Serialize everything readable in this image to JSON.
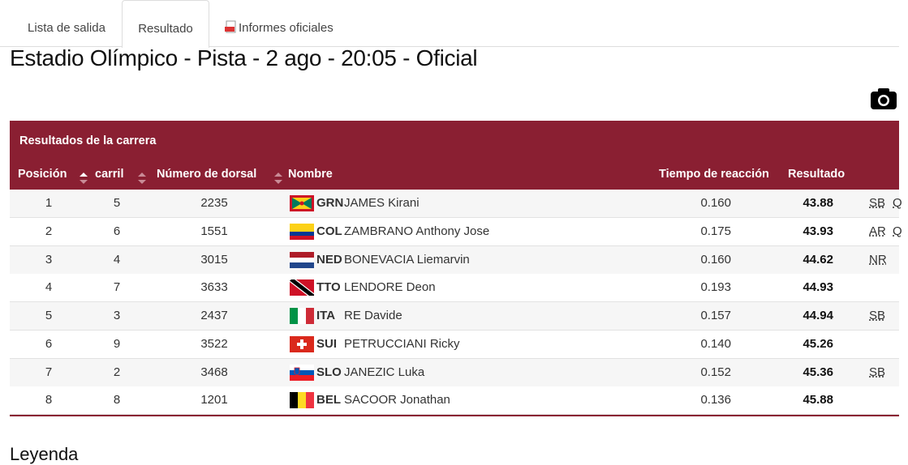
{
  "tabs": [
    "Lista de salida",
    "Resultado",
    "Informes oficiales"
  ],
  "heading": "Estadio Olímpico - Pista - 2 ago - 20:05 - Oficial",
  "table": {
    "title": "Resultados de la carrera",
    "columns": [
      "Posición",
      "carril",
      "Número de dorsal",
      "Nombre",
      "Tiempo de reacción",
      "Resultado"
    ],
    "rows": [
      {
        "position": "1",
        "lane": "5",
        "bib": "2235",
        "country": "GRN",
        "name": "JAMES Kirani",
        "reaction": "0.160",
        "result": "43.88",
        "records": [
          "SB",
          "Q"
        ]
      },
      {
        "position": "2",
        "lane": "6",
        "bib": "1551",
        "country": "COL",
        "name": "ZAMBRANO Anthony Jose",
        "reaction": "0.175",
        "result": "43.93",
        "records": [
          "AR",
          "Q"
        ]
      },
      {
        "position": "3",
        "lane": "4",
        "bib": "3015",
        "country": "NED",
        "name": "BONEVACIA Liemarvin",
        "reaction": "0.160",
        "result": "44.62",
        "records": [
          "NR"
        ]
      },
      {
        "position": "4",
        "lane": "7",
        "bib": "3633",
        "country": "TTO",
        "name": "LENDORE Deon",
        "reaction": "0.193",
        "result": "44.93",
        "records": []
      },
      {
        "position": "5",
        "lane": "3",
        "bib": "2437",
        "country": "ITA",
        "name": "RE Davide",
        "reaction": "0.157",
        "result": "44.94",
        "records": [
          "SB"
        ]
      },
      {
        "position": "6",
        "lane": "9",
        "bib": "3522",
        "country": "SUI",
        "name": "PETRUCCIANI Ricky",
        "reaction": "0.140",
        "result": "45.26",
        "records": []
      },
      {
        "position": "7",
        "lane": "2",
        "bib": "3468",
        "country": "SLO",
        "name": "JANEZIC Luka",
        "reaction": "0.152",
        "result": "45.36",
        "records": [
          "SB"
        ]
      },
      {
        "position": "8",
        "lane": "8",
        "bib": "1201",
        "country": "BEL",
        "name": "SACOOR Jonathan",
        "reaction": "0.136",
        "result": "45.88",
        "records": []
      }
    ]
  },
  "legend_title": "Leyenda"
}
